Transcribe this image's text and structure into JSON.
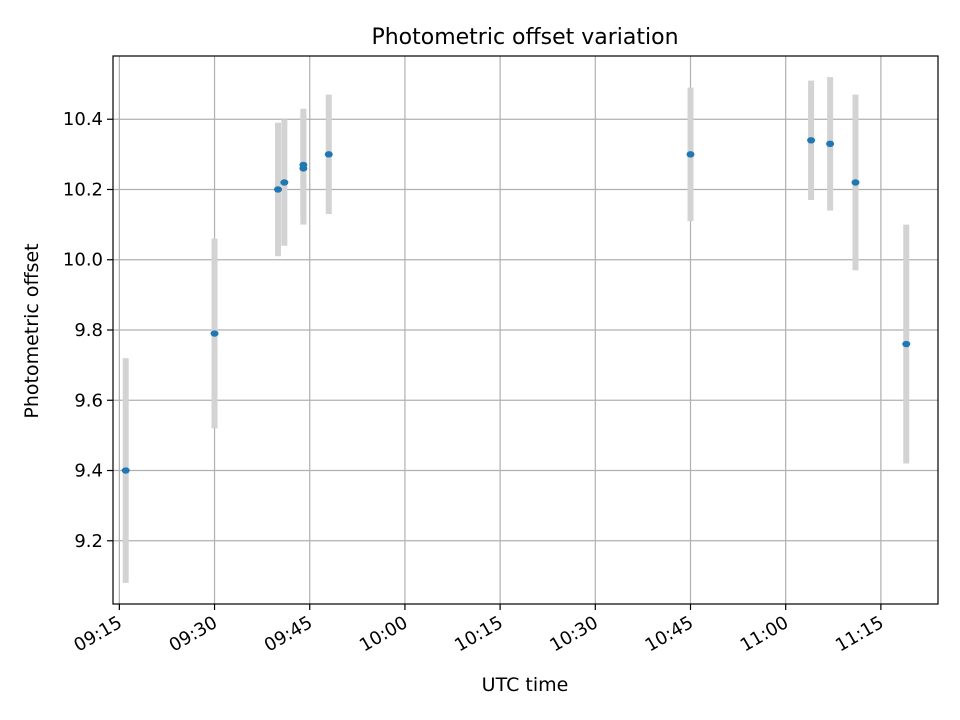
{
  "chart_data": {
    "type": "scatter",
    "title": "Photometric offset variation",
    "xlabel": "UTC time",
    "ylabel": "Photometric offset",
    "x_ticks": [
      "09:15",
      "09:30",
      "09:45",
      "10:00",
      "10:15",
      "10:30",
      "10:45",
      "11:00",
      "11:15"
    ],
    "y_ticks": [
      "9.2",
      "9.4",
      "9.6",
      "9.8",
      "10.0",
      "10.2",
      "10.4"
    ],
    "xlim": [
      "09:14",
      "11:24"
    ],
    "ylim": [
      9.02,
      10.58
    ],
    "grid": true,
    "series": [
      {
        "points": [
          {
            "x": "09:16",
            "y": 9.4,
            "err": 0.32
          },
          {
            "x": "09:30",
            "y": 9.79,
            "err": 0.27
          },
          {
            "x": "09:40",
            "y": 10.2,
            "err": 0.19
          },
          {
            "x": "09:41",
            "y": 10.22,
            "err": 0.18
          },
          {
            "x": "09:44",
            "y": 10.26,
            "err": 0.16
          },
          {
            "x": "09:44",
            "y": 10.27,
            "err": 0.16
          },
          {
            "x": "09:48",
            "y": 10.3,
            "err": 0.17
          },
          {
            "x": "10:45",
            "y": 10.3,
            "err": 0.19
          },
          {
            "x": "11:04",
            "y": 10.34,
            "err": 0.17
          },
          {
            "x": "11:07",
            "y": 10.33,
            "err": 0.19
          },
          {
            "x": "11:11",
            "y": 10.22,
            "err": 0.25
          },
          {
            "x": "11:19",
            "y": 9.76,
            "err": 0.34
          }
        ]
      }
    ],
    "colors": {
      "marker": "#1f77b4",
      "errorbar": "#d3d3d3",
      "grid": "#b0b0b0",
      "axes": "#000000"
    }
  }
}
